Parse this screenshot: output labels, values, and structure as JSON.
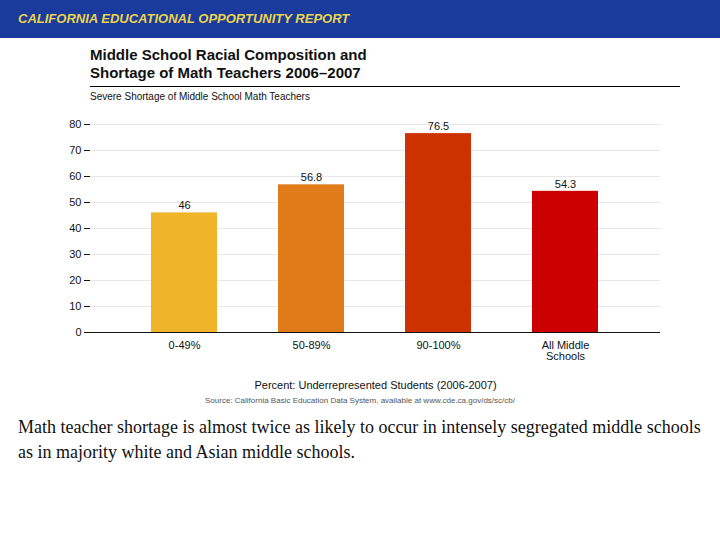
{
  "chart_data": {
    "type": "bar",
    "title": "Middle School Racial Composition and\nShortage of Math Teachers 2006–2007",
    "subtitle": "Severe Shortage of Middle School Math Teachers",
    "annotations": [
      "CALIFORNIA EDUCATIONAL OPPORTUNITY REPORT",
      "Source: California Basic Education Data System, available at www.cde.ca.gov/ds/sc/cb/",
      "Math teacher shortage is almost twice as likely to occur in intensely segregated middle schools as in majority white and Asian middle schools."
    ],
    "categories": [
      "0-49%",
      "50-89%",
      "90-100%",
      "All Middle\nSchools"
    ],
    "values": [
      46,
      56.8,
      76.5,
      54.3
    ],
    "colors": [
      "#f0b429",
      "#e07b1a",
      "#cc3300",
      "#cc0000"
    ],
    "xlabel": "Percent: Underrepresented Students (2006-2007)",
    "ylim": [
      0,
      80
    ],
    "yticks": [
      0,
      10,
      20,
      30,
      40,
      50,
      60,
      70,
      80
    ],
    "grid": true,
    "data_labels": true
  }
}
